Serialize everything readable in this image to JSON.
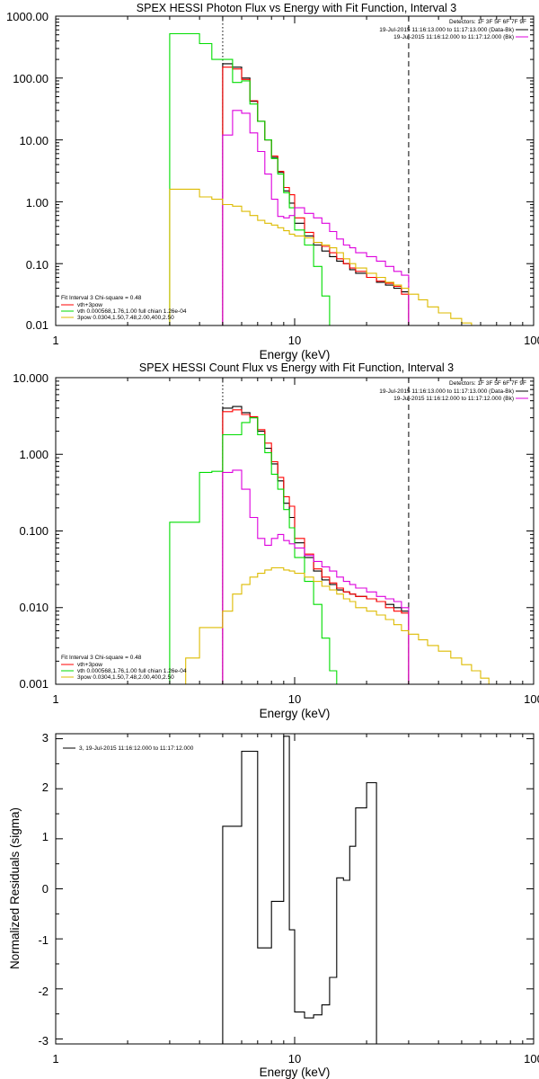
{
  "chart_data": [
    {
      "type": "line",
      "title": "SPEX HESSI Photon Flux vs Energy with Fit Function, Interval 3",
      "xlabel": "Energy (keV)",
      "ylabel": "",
      "xscale": "log",
      "yscale": "log",
      "xlim": [
        1,
        100
      ],
      "ylim": [
        0.01,
        1000
      ],
      "x_tick_labels": [
        "1",
        "10",
        "100"
      ],
      "y_tick_labels": [
        "1000.00",
        "100.00",
        "10.00",
        "1.00",
        "0.10",
        "0.01"
      ],
      "info": {
        "detectors": "Detectors: 1F 3F 5F 6F 7F 9F",
        "line1": "19-Jul-2015 11:16:13.000 to 11:17:13.000 (Data-Bk)",
        "line2": "19-Jul-2015 11:16:12.000 to 11:17:12.000 (Bk)"
      },
      "legend": {
        "placement": "bottom-left",
        "header": "Fit Interval 3   Chi-square = 0.48",
        "entries": [
          "vth+3pow",
          "vth 0.000568,1.76,1.00  full chian 1.26e-04",
          "3pow 0.0304,1.50,7.48,2.00,400,2.50"
        ]
      },
      "fit_range_keV": [
        5.0,
        30.0
      ],
      "bin_edges_keV": [
        3.0,
        3.5,
        4.0,
        4.5,
        5.0,
        5.5,
        6.0,
        6.5,
        7.0,
        7.5,
        8.0,
        8.5,
        9.0,
        9.5,
        10.0,
        11.0,
        12.0,
        13.0,
        14.0,
        15.0,
        16.0,
        17.0,
        18.0,
        20.0,
        22.0,
        24.0,
        26.0,
        28.0,
        30.0,
        33.0,
        36.0,
        40.0,
        45.0,
        50.0,
        55.0,
        60.0
      ],
      "series": [
        {
          "name": "vth+3pow",
          "color": "#000000",
          "start_edge": 4,
          "values": [
            170,
            150,
            100,
            42,
            20,
            10,
            5.2,
            3.0,
            1.5,
            0.95,
            0.45,
            0.28,
            0.2,
            0.16,
            0.13,
            0.11,
            0.1,
            0.08,
            0.07,
            0.06,
            0.05,
            0.045,
            0.04,
            0.035
          ]
        },
        {
          "name": "",
          "color": "#ff0000",
          "start_edge": 4,
          "values": [
            150,
            140,
            95,
            43,
            20,
            10,
            5.5,
            3.1,
            1.7,
            1.3,
            0.55,
            0.32,
            0.22,
            0.19,
            0.15,
            0.12,
            0.1,
            0.085,
            0.075,
            0.06,
            0.052,
            0.048,
            0.043,
            0.032
          ]
        },
        {
          "name": "vth 0.000568,1.76,1.00  full chian 1.26e-04",
          "color": "#00dd00",
          "start_edge": 0,
          "values": [
            520,
            520,
            360,
            200,
            200,
            85,
            90,
            38,
            20,
            10,
            5.0,
            2.8,
            1.4,
            0.8,
            0.35,
            0.2,
            0.09,
            0.03,
            0.01,
            0.0009
          ]
        },
        {
          "name": "",
          "color": "#dd00dd",
          "start_edge": 4,
          "values": [
            12.0,
            30.0,
            27.0,
            13.0,
            6.5,
            2.8,
            1.1,
            0.58,
            0.55,
            0.6,
            0.8,
            0.65,
            0.55,
            0.45,
            0.33,
            0.25,
            0.2,
            0.18,
            0.15,
            0.13,
            0.11,
            0.09,
            0.075,
            0.065
          ]
        },
        {
          "name": "3pow 0.0304,1.50,7.48,2.00,400,2.50",
          "color": "#ddbb00",
          "start_edge": 0,
          "values": [
            1.6,
            1.6,
            1.2,
            1.1,
            0.9,
            0.85,
            0.7,
            0.6,
            0.5,
            0.45,
            0.42,
            0.38,
            0.34,
            0.3,
            0.28,
            0.26,
            0.22,
            0.2,
            0.18,
            0.15,
            0.12,
            0.1,
            0.085,
            0.07,
            0.06,
            0.05,
            0.045,
            0.04,
            0.032,
            0.026,
            0.02,
            0.016,
            0.013,
            0.011,
            0.009
          ]
        }
      ]
    },
    {
      "type": "line",
      "title": "SPEX HESSI Count Flux vs Energy with Fit Function, Interval 3",
      "xlabel": "Energy (keV)",
      "ylabel": "",
      "xscale": "log",
      "yscale": "log",
      "xlim": [
        1,
        100
      ],
      "ylim": [
        0.001,
        10
      ],
      "x_tick_labels": [
        "1",
        "10",
        "100"
      ],
      "y_tick_labels": [
        "10.000",
        "1.000",
        "0.100",
        "0.010",
        "0.001"
      ],
      "info": {
        "detectors": "Detectors: 1F 3F 5F 6F 7F 9F",
        "line1": "19-Jul-2015 11:16:13.000 to 11:17:13.000 (Data-Bk)",
        "line2": "19-Jul-2015 11:16:12.000 to 11:17:12.000 (Bk)"
      },
      "legend": {
        "placement": "bottom-left",
        "header": "Fit Interval 3   Chi-square = 0.48",
        "entries": [
          "vth+3pow",
          "vth 0.000568,1.76,1.00  full chian 1.26e-04",
          "3pow 0.0304,1.50,7.48,2.00,400,2.50"
        ]
      },
      "fit_range_keV": [
        5.0,
        30.0
      ],
      "bin_edges_keV": [
        3.0,
        3.5,
        4.0,
        4.5,
        5.0,
        5.5,
        6.0,
        6.5,
        7.0,
        7.5,
        8.0,
        8.5,
        9.0,
        9.5,
        10.0,
        11.0,
        12.0,
        13.0,
        14.0,
        15.0,
        16.0,
        17.0,
        18.0,
        20.0,
        22.0,
        24.0,
        26.0,
        28.0,
        30.0,
        33.0,
        36.0,
        40.0,
        45.0,
        50.0,
        55.0,
        60.0,
        65.0,
        70.0,
        75.0
      ],
      "series": [
        {
          "name": "vth+3pow",
          "color": "#000000",
          "start_edge": 4,
          "values": [
            4.0,
            4.2,
            3.5,
            3.0,
            2.0,
            1.2,
            0.75,
            0.45,
            0.23,
            0.15,
            0.07,
            0.045,
            0.03,
            0.023,
            0.02,
            0.017,
            0.016,
            0.015,
            0.014,
            0.013,
            0.012,
            0.011,
            0.01,
            0.009
          ]
        },
        {
          "name": "",
          "color": "#ff0000",
          "start_edge": 4,
          "values": [
            3.6,
            3.8,
            3.3,
            3.1,
            2.1,
            1.4,
            0.8,
            0.5,
            0.28,
            0.21,
            0.08,
            0.05,
            0.032,
            0.025,
            0.021,
            0.018,
            0.016,
            0.015,
            0.014,
            0.013,
            0.012,
            0.01,
            0.009,
            0.0085
          ]
        },
        {
          "name": "vth 0.000568,1.76,1.00  full chian 1.26e-04",
          "color": "#00dd00",
          "start_edge": 0,
          "values": [
            0.13,
            0.13,
            0.58,
            0.6,
            1.8,
            1.8,
            2.6,
            3.0,
            1.8,
            1.05,
            0.55,
            0.35,
            0.19,
            0.11,
            0.045,
            0.022,
            0.011,
            0.004,
            0.0015,
            0.0009
          ]
        },
        {
          "name": "",
          "color": "#dd00dd",
          "start_edge": 4,
          "values": [
            0.58,
            0.62,
            0.35,
            0.15,
            0.08,
            0.065,
            0.08,
            0.09,
            0.075,
            0.068,
            0.06,
            0.048,
            0.04,
            0.034,
            0.03,
            0.025,
            0.022,
            0.02,
            0.018,
            0.016,
            0.014,
            0.013,
            0.012,
            0.01
          ]
        },
        {
          "name": "3pow 0.0304,1.50,7.48,2.00,400,2.50",
          "color": "#ddbb00",
          "start_edge": 0,
          "values": [
            0.0009,
            0.0022,
            0.0055,
            0.0055,
            0.009,
            0.015,
            0.02,
            0.025,
            0.028,
            0.031,
            0.033,
            0.033,
            0.031,
            0.03,
            0.028,
            0.025,
            0.022,
            0.019,
            0.017,
            0.015,
            0.013,
            0.012,
            0.01,
            0.009,
            0.008,
            0.007,
            0.006,
            0.005,
            0.0045,
            0.0038,
            0.0032,
            0.0027,
            0.0022,
            0.0018,
            0.0015,
            0.0012,
            0.001,
            0.0008
          ]
        }
      ]
    },
    {
      "type": "line",
      "title": "",
      "xlabel": "Energy (keV)",
      "ylabel": "Normalized Residuals (sigma)",
      "xscale": "log",
      "yscale": "linear",
      "xlim": [
        1,
        100
      ],
      "ylim": [
        -3.1,
        3.1
      ],
      "x_tick_labels": [
        "1",
        "10",
        "100"
      ],
      "y_tick_labels": [
        "3",
        "2",
        "1",
        "0",
        "-1",
        "-2",
        "-3"
      ],
      "legend": {
        "placement": "top-left",
        "entries": [
          "3, 19-Jul-2015 11:16:12.000 to 11:17:12.000"
        ]
      },
      "bin_edges_keV": [
        5.0,
        5.5,
        6.0,
        6.5,
        7.0,
        7.5,
        8.0,
        8.5,
        9.0,
        9.5,
        10.0,
        11.0,
        12.0,
        13.0,
        14.0,
        15.0,
        16.0,
        17.0,
        18.0,
        20.0,
        22.0,
        24.0,
        26.0,
        28.0,
        30.0
      ],
      "series": [
        {
          "name": "3, 19-Jul-2015 11:16:12.000 to 11:17:12.000",
          "color": "#000000",
          "start_edge": 0,
          "values": [
            1.25,
            1.25,
            2.75,
            2.75,
            -1.18,
            -1.18,
            -0.25,
            -0.25,
            3.05,
            -0.82,
            -2.46,
            -2.58,
            -2.52,
            -2.32,
            -1.77,
            0.22,
            0.17,
            0.85,
            1.62,
            2.12
          ]
        }
      ]
    }
  ]
}
